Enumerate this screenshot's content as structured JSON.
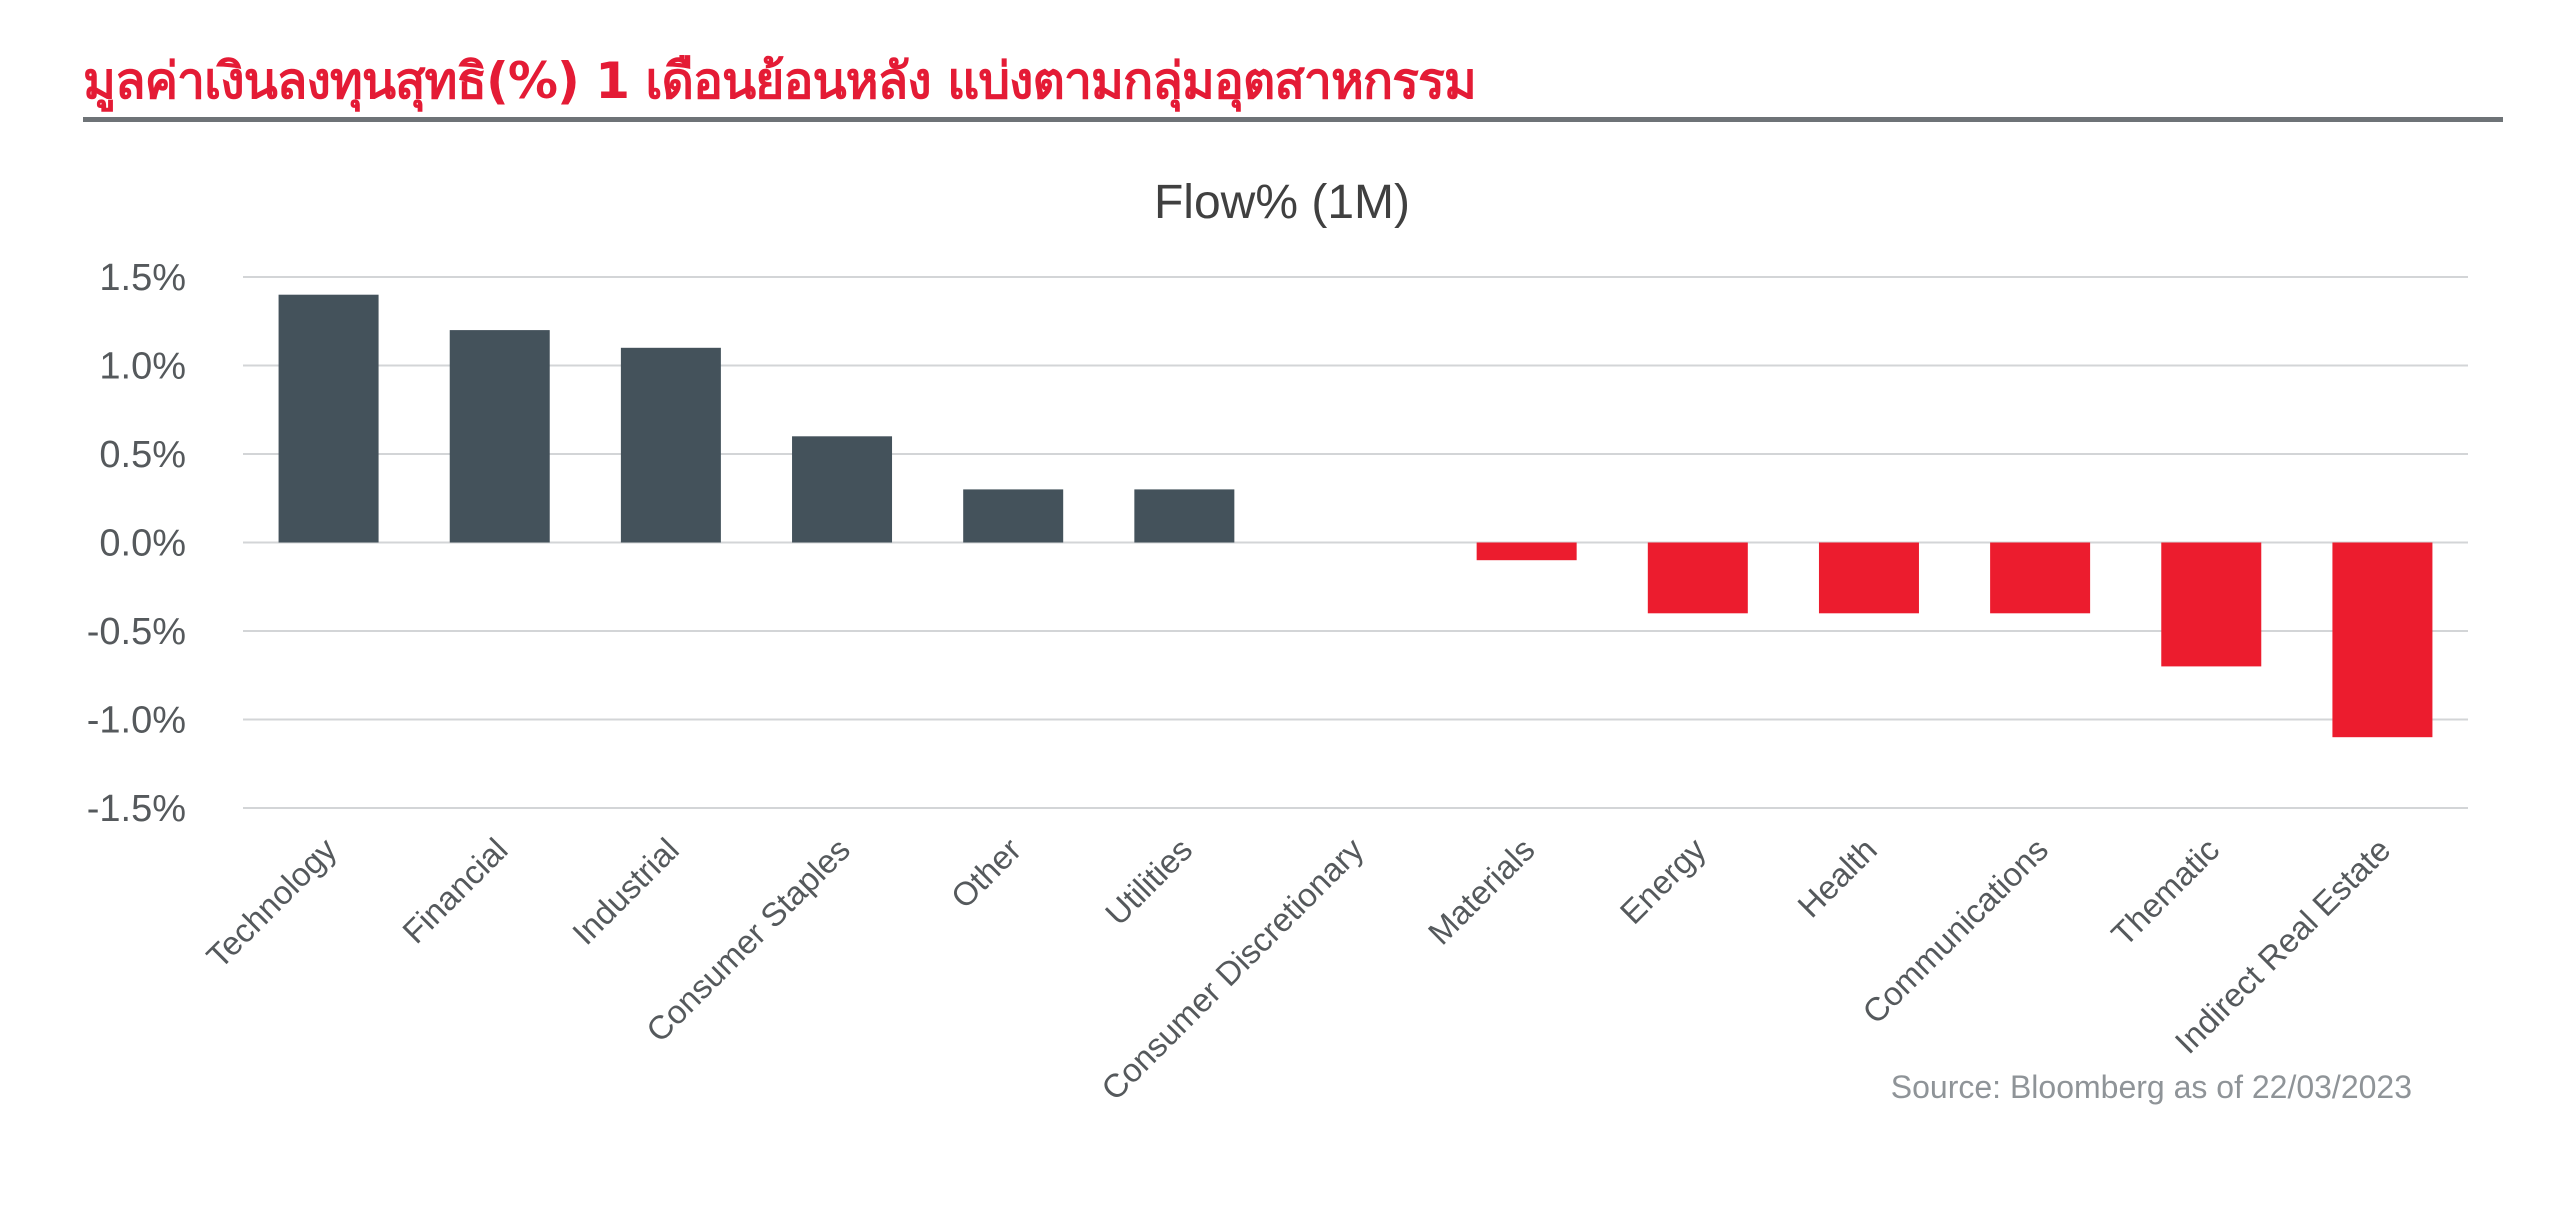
{
  "header": {
    "title": "มูลค่าเงินลงทุนสุทธิ(%) 1 เดือนย้อนหลัง แบ่งตามกลุ่มอุตสาหกรรม"
  },
  "colors": {
    "title": "#e41b35",
    "positive_bar": "#44525b",
    "negative_bar": "#ec1c2e",
    "gridline": "#d3d5d7",
    "axis_text": "#55595c",
    "source_text": "#8f9498",
    "header_rule": "#6e7377"
  },
  "chart_data": {
    "type": "bar",
    "title": "Flow% (1M)",
    "xlabel": "",
    "ylabel": "",
    "ylim": [
      -1.5,
      1.5
    ],
    "yticks": [
      1.5,
      1.0,
      0.5,
      0.0,
      -0.5,
      -1.0,
      -1.5
    ],
    "ytick_labels": [
      "1.5%",
      "1.0%",
      "0.5%",
      "0.0%",
      "-0.5%",
      "-1.0%",
      "-1.5%"
    ],
    "grid": true,
    "legend": "none",
    "categories": [
      "Technology",
      "Financial",
      "Industrial",
      "Consumer Staples",
      "Other",
      "Utilities",
      "Consumer Discretionary",
      "Materials",
      "Energy",
      "Health",
      "Communications",
      "Thematic",
      "Indirect Real Estate"
    ],
    "values": [
      1.4,
      1.2,
      1.1,
      0.6,
      0.3,
      0.3,
      0.0,
      -0.1,
      -0.4,
      -0.4,
      -0.4,
      -0.7,
      -1.1
    ],
    "source": "Source: Bloomberg as of 22/03/2023"
  }
}
